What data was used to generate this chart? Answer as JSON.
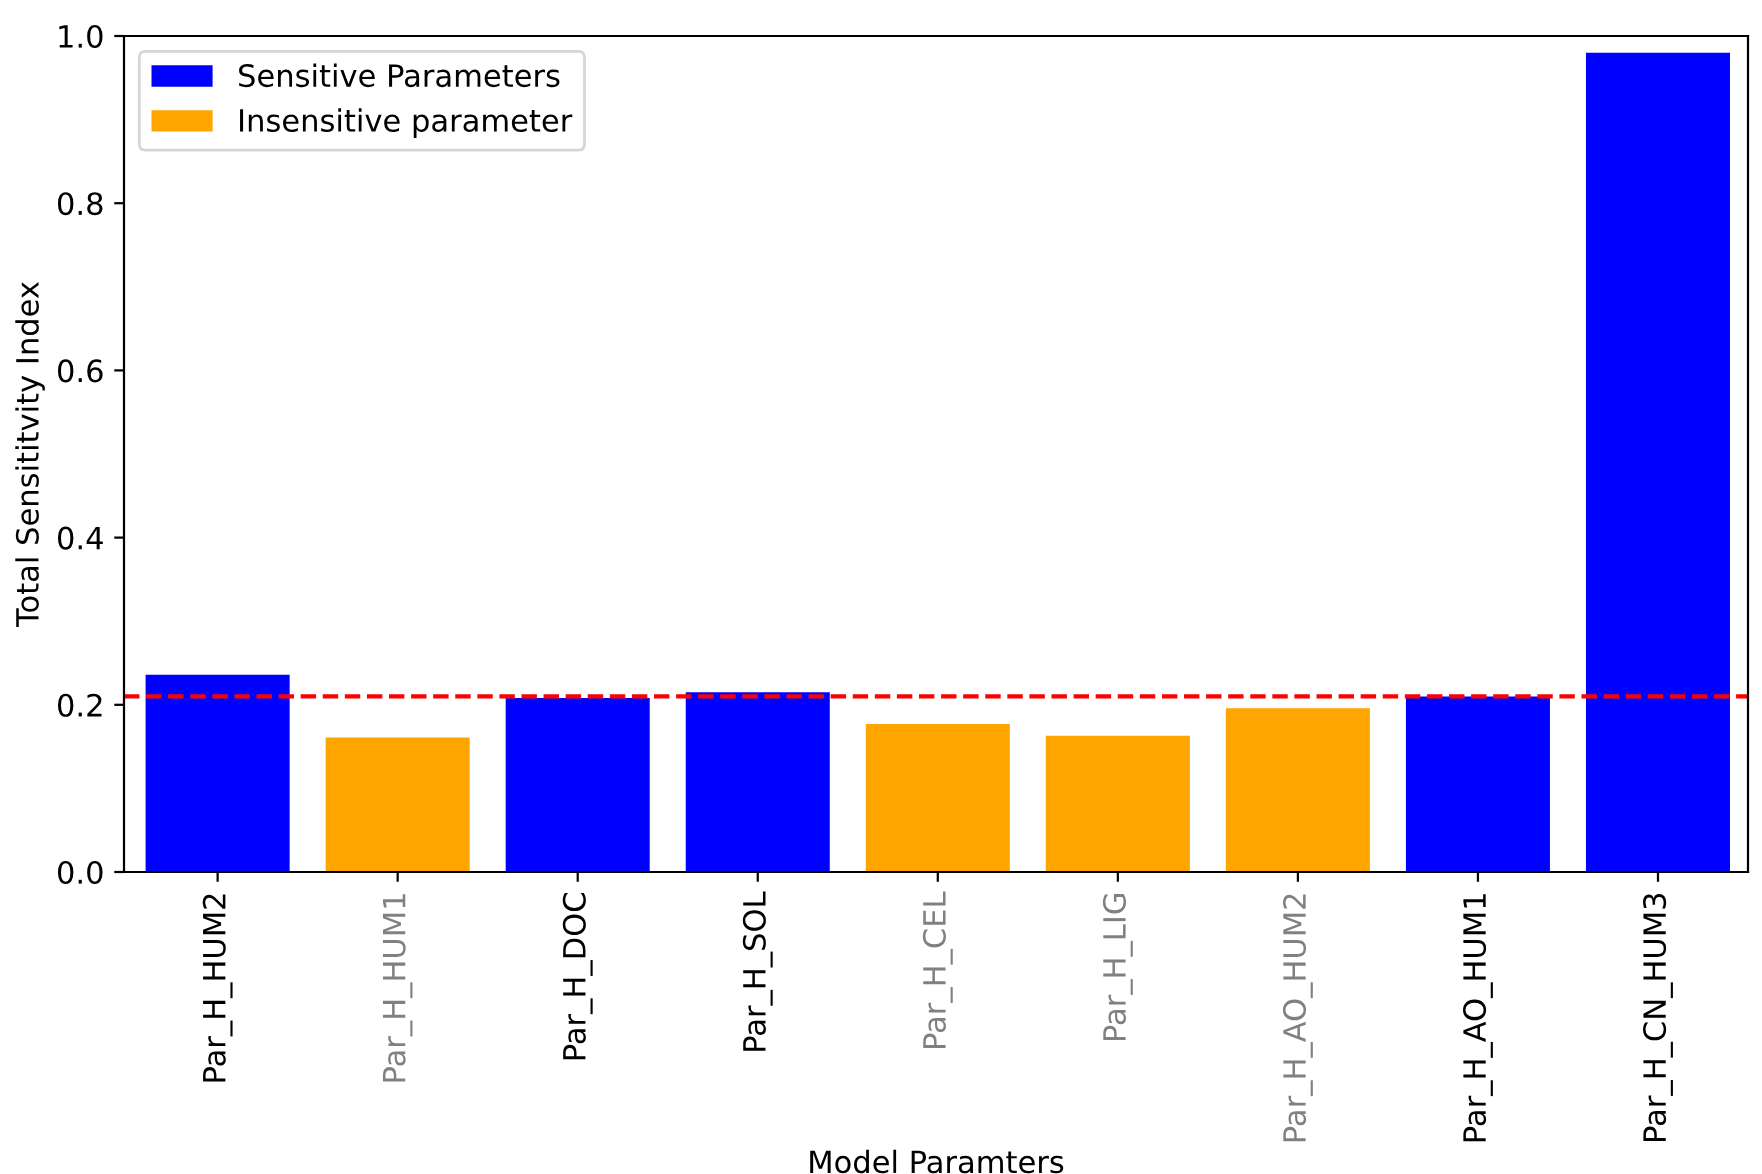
{
  "chart_data": {
    "type": "bar",
    "xlabel": "Model Paramters",
    "ylabel": "Total Sensititvity Index",
    "categories": [
      "Par_H_HUM2",
      "Par_H_HUM1",
      "Par_H_DOC",
      "Par_H_SOL",
      "Par_H_CEL",
      "Par_H_LIG",
      "Par_H_AO_HUM2",
      "Par_H_AO_HUM1",
      "Par_H_CN_HUM3"
    ],
    "series": [
      {
        "name": "Sensitive Parameters",
        "color": "#0000ff",
        "values": [
          0.236,
          null,
          0.208,
          0.215,
          null,
          null,
          null,
          0.21,
          0.98
        ]
      },
      {
        "name": "Insensitive parameter",
        "color": "#ffa500",
        "values": [
          null,
          0.161,
          null,
          null,
          0.177,
          0.163,
          0.196,
          null,
          null
        ]
      }
    ],
    "ylim": [
      0,
      1.0
    ],
    "yticks": [
      {
        "value": 0,
        "label": "0.0"
      },
      0.2,
      0.4,
      0.6,
      0.8,
      {
        "value": 1.0,
        "label": "1.0"
      }
    ],
    "ref_lines": [
      {
        "axis": "y",
        "value": 0.21,
        "color": "#ff0000",
        "line_style": "dashed"
      }
    ],
    "legend": "top left",
    "grid": false
  }
}
